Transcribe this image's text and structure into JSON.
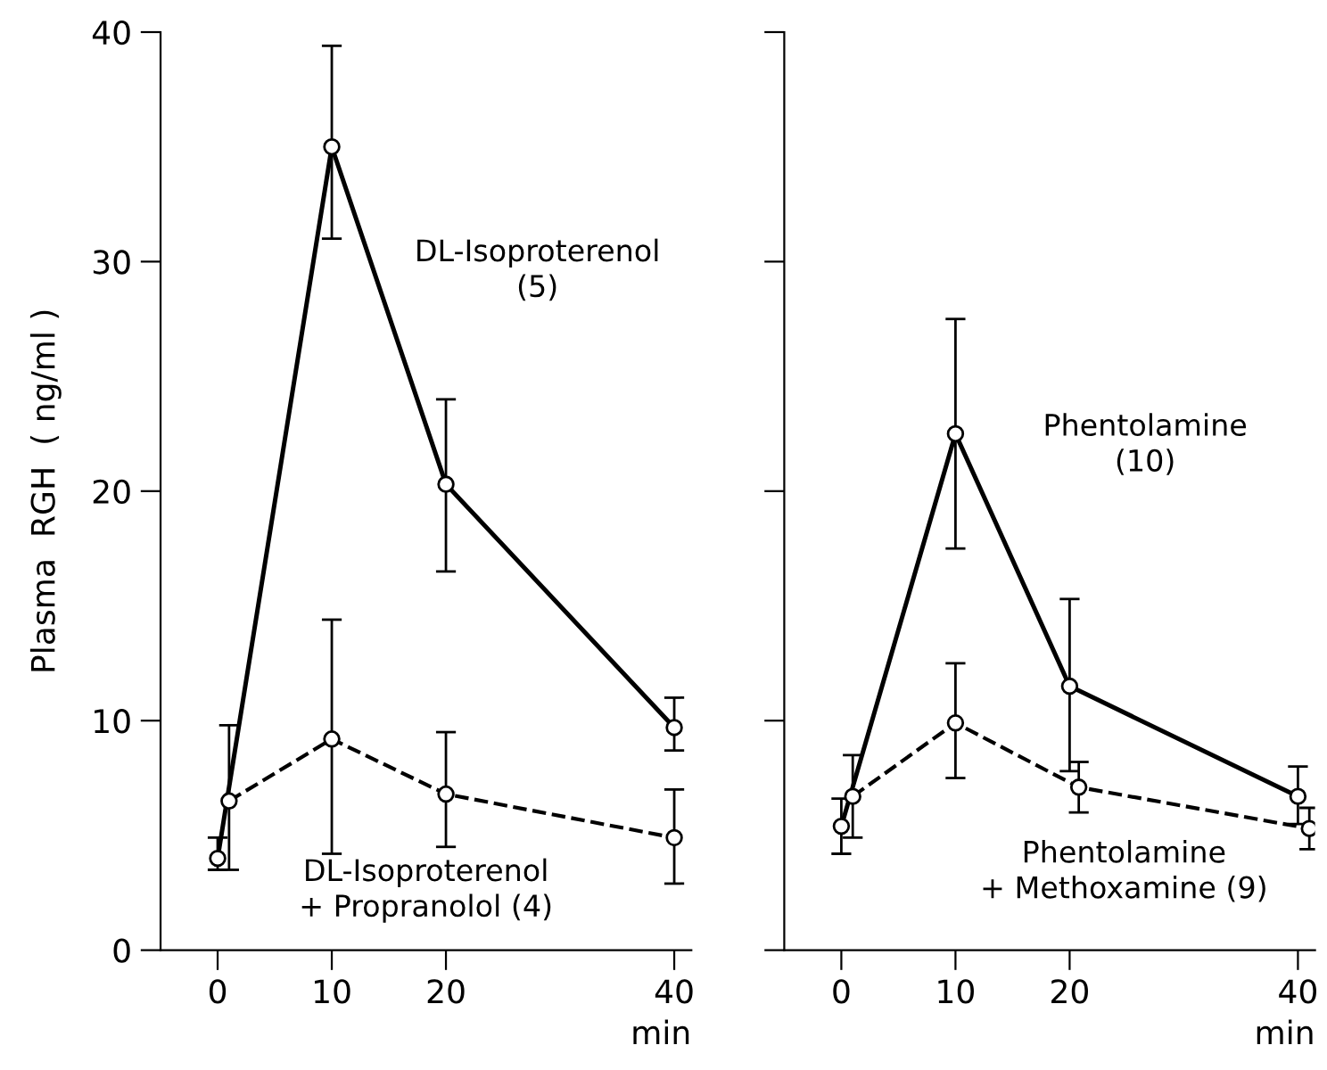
{
  "chart_data": [
    {
      "type": "line",
      "ylabel": "Plasma  RGH  ( ng/ml )",
      "xlabel": "min",
      "xlim": [
        -5,
        41.5
      ],
      "xticks": [
        0,
        10,
        20,
        40
      ],
      "ylim": [
        0,
        40
      ],
      "yticks": [
        0,
        10,
        20,
        30,
        40
      ],
      "grid": false,
      "legend": false,
      "marker": "circle",
      "series": [
        {
          "name": "DL-Isoproterenol\n(5)",
          "color": "#000000",
          "line_style": "solid",
          "x": [
            0,
            10,
            20,
            40
          ],
          "values": [
            4.0,
            35.0,
            20.3,
            9.7
          ],
          "errors": [
            [
              3.5,
              4.9
            ],
            [
              31.0,
              39.4
            ],
            [
              16.5,
              24.0
            ],
            [
              8.7,
              11.0
            ]
          ]
        },
        {
          "name": "DL-Isoproterenol\n+ Propranolol (4)",
          "color": "#000000",
          "line_style": "dashed",
          "x": [
            1,
            10,
            20,
            40
          ],
          "values": [
            6.5,
            9.2,
            6.8,
            4.9
          ],
          "errors": [
            [
              3.5,
              9.8
            ],
            [
              4.2,
              14.4
            ],
            [
              4.5,
              9.5
            ],
            [
              2.9,
              7.0
            ]
          ]
        }
      ]
    },
    {
      "type": "line",
      "xlabel": "min",
      "xlim": [
        -5,
        41.5
      ],
      "xticks": [
        0,
        10,
        20,
        40
      ],
      "ylim": [
        0,
        40
      ],
      "yticks": [
        0,
        10,
        20,
        30,
        40
      ],
      "tick_labels": "x",
      "grid": false,
      "legend": false,
      "marker": "circle",
      "series": [
        {
          "name": "Phentolamine\n(10)",
          "color": "#000000",
          "line_style": "solid",
          "x": [
            0,
            10,
            20,
            40
          ],
          "values": [
            5.4,
            22.5,
            11.5,
            6.7
          ],
          "errors": [
            [
              4.2,
              6.6
            ],
            [
              17.5,
              27.5
            ],
            [
              7.8,
              15.3
            ],
            [
              5.5,
              8.0
            ]
          ]
        },
        {
          "name": "Phentolamine\n+ Methoxamine (9)",
          "color": "#000000",
          "line_style": "dashed",
          "x": [
            1,
            10,
            20.8,
            41
          ],
          "values": [
            6.7,
            9.9,
            7.1,
            5.3
          ],
          "errors": [
            [
              4.9,
              8.5
            ],
            [
              7.5,
              12.5
            ],
            [
              6.0,
              8.2
            ],
            [
              4.4,
              6.2
            ]
          ]
        }
      ]
    }
  ]
}
